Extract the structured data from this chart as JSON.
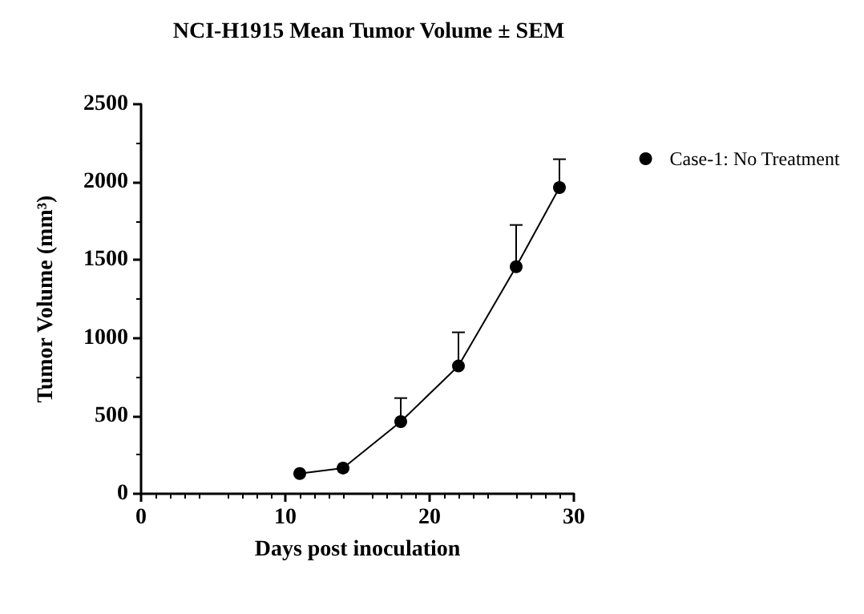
{
  "chart_data": {
    "type": "line",
    "title": "NCI-H1915 Mean Tumor Volume ± SEM",
    "xlabel": "Days post inoculation",
    "ylabel": "Tumor Volume (mm³)",
    "x": [
      11,
      14,
      18,
      22,
      26,
      29
    ],
    "series": [
      {
        "name": "Case-1: No Treatment",
        "color": "#000000",
        "values": [
          130,
          165,
          463,
          820,
          1457,
          1965
        ],
        "errors": [
          null,
          null,
          [
            463,
            614
          ],
          [
            820,
            1036
          ],
          [
            1457,
            1725
          ],
          [
            1965,
            2147
          ]
        ]
      }
    ],
    "xlim": [
      0,
      30
    ],
    "xticks": [
      0,
      10,
      20,
      30
    ],
    "ylim": [
      0,
      2500
    ],
    "yticks": [
      0,
      500,
      1000,
      1500,
      2000,
      2500
    ],
    "grid": false,
    "legend": "top right",
    "marker": "circle",
    "line_style": "solid"
  }
}
